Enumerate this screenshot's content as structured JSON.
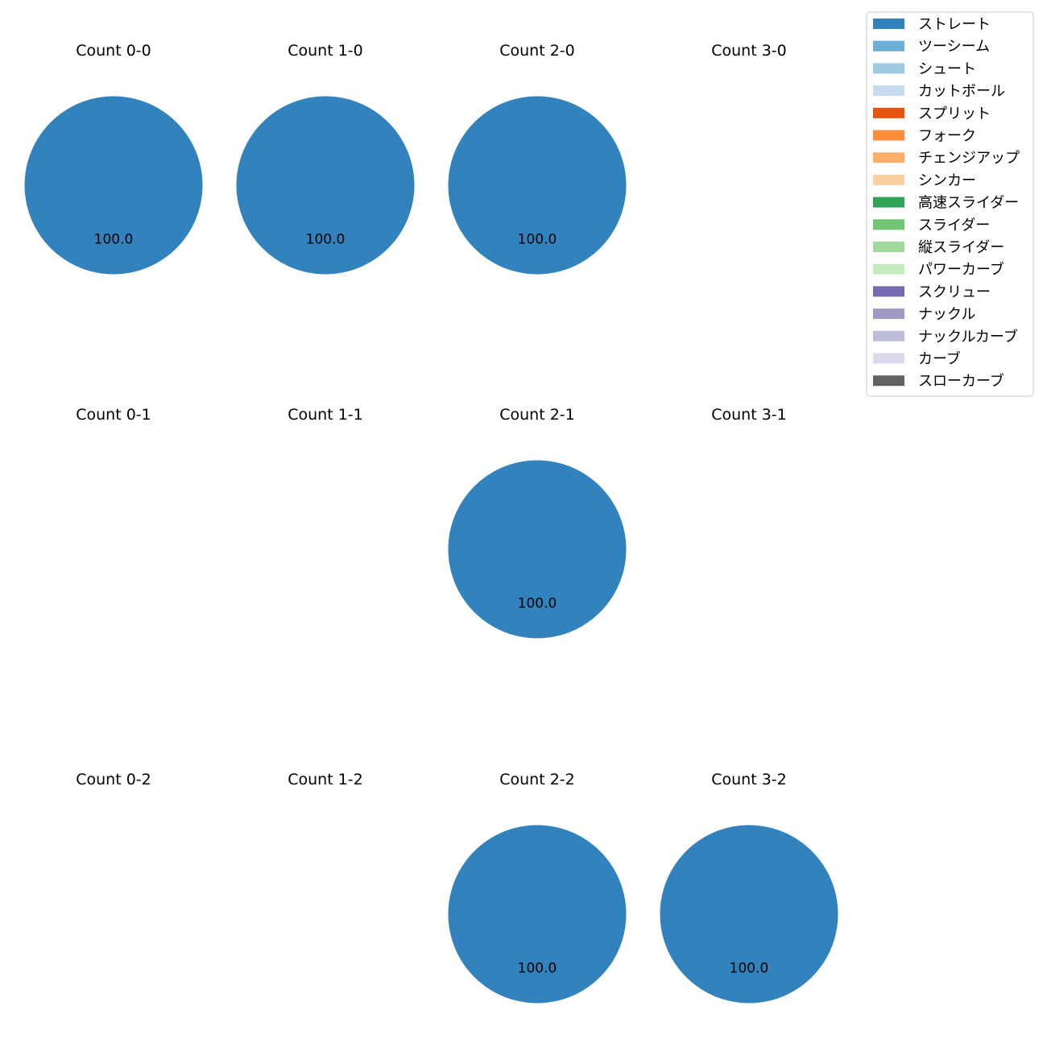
{
  "chart_data": {
    "type": "pie",
    "series_colors": {
      "ストレート": "#3182bd",
      "ツーシーム": "#6baed6",
      "シュート": "#9ecae1",
      "カットボール": "#c6dbef",
      "スプリット": "#e6550d",
      "フォーク": "#fd8d3c",
      "チェンジアップ": "#fdae6b",
      "シンカー": "#fdd0a2",
      "高速スライダー": "#31a354",
      "スライダー": "#74c476",
      "縦スライダー": "#a1d99b",
      "パワーカーブ": "#c7e9c0",
      "スクリュー": "#756bb1",
      "ナックル": "#9e9ac8",
      "ナックルカーブ": "#bcbddc",
      "カーブ": "#dadaeb",
      "スローカーブ": "#636363"
    },
    "legend": {
      "placement": "top-right",
      "entries": [
        "ストレート",
        "ツーシーム",
        "シュート",
        "カットボール",
        "スプリット",
        "フォーク",
        "チェンジアップ",
        "シンカー",
        "高速スライダー",
        "スライダー",
        "縦スライダー",
        "パワーカーブ",
        "スクリュー",
        "ナックル",
        "ナックルカーブ",
        "カーブ",
        "スローカーブ"
      ]
    },
    "panels": [
      {
        "title": "Count 0-0",
        "slices": [
          {
            "label": "ストレート",
            "value": 100.0
          }
        ],
        "pct_labels": [
          "100.0"
        ]
      },
      {
        "title": "Count 1-0",
        "slices": [
          {
            "label": "ストレート",
            "value": 100.0
          }
        ],
        "pct_labels": [
          "100.0"
        ]
      },
      {
        "title": "Count 2-0",
        "slices": [
          {
            "label": "ストレート",
            "value": 100.0
          }
        ],
        "pct_labels": [
          "100.0"
        ]
      },
      {
        "title": "Count 3-0",
        "slices": [],
        "pct_labels": []
      },
      {
        "title": "Count 0-1",
        "slices": [],
        "pct_labels": []
      },
      {
        "title": "Count 1-1",
        "slices": [],
        "pct_labels": []
      },
      {
        "title": "Count 2-1",
        "slices": [
          {
            "label": "ストレート",
            "value": 100.0
          }
        ],
        "pct_labels": [
          "100.0"
        ]
      },
      {
        "title": "Count 3-1",
        "slices": [],
        "pct_labels": []
      },
      {
        "title": "Count 0-2",
        "slices": [],
        "pct_labels": []
      },
      {
        "title": "Count 1-2",
        "slices": [],
        "pct_labels": []
      },
      {
        "title": "Count 2-2",
        "slices": [
          {
            "label": "ストレート",
            "value": 100.0
          }
        ],
        "pct_labels": [
          "100.0"
        ]
      },
      {
        "title": "Count 3-2",
        "slices": [
          {
            "label": "ストレート",
            "value": 100.0
          }
        ],
        "pct_labels": [
          "100.0"
        ]
      }
    ]
  }
}
